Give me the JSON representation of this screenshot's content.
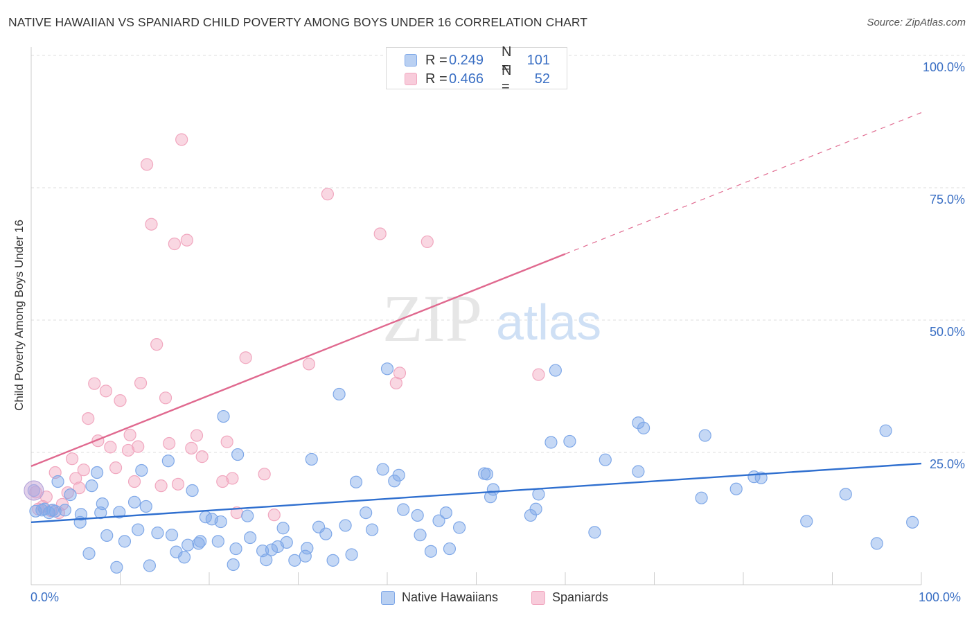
{
  "header": {
    "title": "NATIVE HAWAIIAN VS SPANIARD CHILD POVERTY AMONG BOYS UNDER 16 CORRELATION CHART",
    "source": "Source: ZipAtlas.com"
  },
  "watermark": {
    "zip": "ZIP",
    "atlas": "atlas"
  },
  "legend_top": {
    "rows": [
      {
        "r_label": "R =",
        "r_value": "0.249",
        "n_label": "N =",
        "n_value": "101",
        "color": "#7fa8e8"
      },
      {
        "r_label": "R =",
        "r_value": "0.466",
        "n_label": "N =",
        "n_value": "52",
        "color": "#f1a7bf"
      }
    ]
  },
  "legend_bottom": [
    {
      "label": "Native Hawaiians",
      "color": "#7fa8e8"
    },
    {
      "label": "Spaniards",
      "color": "#f1a7bf"
    }
  ],
  "colors": {
    "blue": "#7fa8e8",
    "blue_line": "#2f6fcf",
    "pink": "#f1a7bf",
    "pink_line": "#e0698f",
    "tick_text": "#3a6fc4",
    "grid": "#dddddd"
  },
  "chart_data": {
    "type": "scatter",
    "title": "NATIVE HAWAIIAN VS SPANIARD CHILD POVERTY AMONG BOYS UNDER 16 CORRELATION CHART",
    "xlabel": "",
    "ylabel": "Child Poverty Among Boys Under 16",
    "xlim": [
      0,
      100
    ],
    "ylim": [
      0,
      100
    ],
    "x_tick_labels": [
      "0.0%",
      "100.0%"
    ],
    "y_tick_labels": [
      "25.0%",
      "50.0%",
      "75.0%",
      "100.0%"
    ],
    "y_ticks": [
      25,
      50,
      75,
      100
    ],
    "grid": true,
    "legend_position": "top-center",
    "series": [
      {
        "name": "Native Hawaiians",
        "color": "#7fa8e8",
        "points": [
          [
            0.3,
            17.8
          ],
          [
            0.5,
            13.9
          ],
          [
            1.2,
            14.1
          ],
          [
            1.5,
            14.3
          ],
          [
            2.0,
            13.6
          ],
          [
            2.4,
            14.1
          ],
          [
            2.7,
            13.9
          ],
          [
            3.0,
            19.5
          ],
          [
            3.8,
            14.1
          ],
          [
            4.4,
            17.0
          ],
          [
            5.5,
            11.8
          ],
          [
            5.6,
            13.3
          ],
          [
            6.5,
            5.9
          ],
          [
            6.8,
            18.7
          ],
          [
            7.4,
            21.2
          ],
          [
            7.8,
            13.6
          ],
          [
            8.0,
            15.3
          ],
          [
            8.5,
            9.3
          ],
          [
            9.6,
            3.3
          ],
          [
            9.9,
            13.7
          ],
          [
            10.5,
            8.2
          ],
          [
            11.6,
            15.6
          ],
          [
            12.0,
            10.4
          ],
          [
            12.4,
            21.6
          ],
          [
            12.9,
            14.8
          ],
          [
            13.3,
            3.6
          ],
          [
            14.2,
            9.8
          ],
          [
            15.4,
            23.4
          ],
          [
            15.8,
            9.4
          ],
          [
            16.3,
            6.2
          ],
          [
            17.2,
            5.2
          ],
          [
            17.6,
            7.5
          ],
          [
            18.1,
            17.8
          ],
          [
            18.8,
            7.8
          ],
          [
            19.0,
            8.2
          ],
          [
            19.6,
            12.8
          ],
          [
            20.3,
            12.4
          ],
          [
            21.0,
            8.2
          ],
          [
            21.3,
            11.9
          ],
          [
            21.6,
            31.8
          ],
          [
            22.7,
            3.8
          ],
          [
            23.0,
            6.8
          ],
          [
            23.2,
            24.6
          ],
          [
            24.3,
            13.0
          ],
          [
            24.6,
            8.9
          ],
          [
            26.0,
            6.4
          ],
          [
            26.4,
            4.7
          ],
          [
            27.0,
            6.6
          ],
          [
            27.7,
            7.2
          ],
          [
            28.3,
            10.7
          ],
          [
            28.7,
            8.0
          ],
          [
            29.6,
            4.6
          ],
          [
            30.8,
            5.4
          ],
          [
            31.0,
            6.9
          ],
          [
            31.5,
            23.7
          ],
          [
            32.3,
            10.9
          ],
          [
            33.1,
            9.6
          ],
          [
            33.9,
            4.6
          ],
          [
            34.6,
            36.0
          ],
          [
            35.3,
            11.2
          ],
          [
            36.0,
            5.7
          ],
          [
            36.5,
            19.4
          ],
          [
            37.6,
            13.6
          ],
          [
            38.3,
            10.4
          ],
          [
            39.5,
            21.8
          ],
          [
            40.0,
            40.8
          ],
          [
            40.8,
            19.6
          ],
          [
            41.3,
            20.7
          ],
          [
            41.8,
            14.2
          ],
          [
            43.4,
            13.1
          ],
          [
            43.7,
            9.4
          ],
          [
            44.9,
            6.3
          ],
          [
            45.8,
            12.1
          ],
          [
            46.6,
            13.6
          ],
          [
            47.0,
            6.8
          ],
          [
            48.1,
            10.8
          ],
          [
            50.9,
            21.0
          ],
          [
            51.2,
            20.9
          ],
          [
            51.9,
            18.0
          ],
          [
            51.6,
            16.6
          ],
          [
            56.1,
            13.1
          ],
          [
            56.7,
            14.3
          ],
          [
            57.0,
            17.1
          ],
          [
            58.4,
            26.9
          ],
          [
            58.9,
            40.5
          ],
          [
            60.5,
            27.1
          ],
          [
            63.3,
            9.9
          ],
          [
            64.5,
            23.6
          ],
          [
            68.2,
            30.6
          ],
          [
            68.2,
            21.4
          ],
          [
            68.8,
            29.6
          ],
          [
            75.3,
            16.4
          ],
          [
            75.7,
            28.2
          ],
          [
            79.2,
            18.1
          ],
          [
            81.2,
            20.4
          ],
          [
            82.0,
            20.2
          ],
          [
            87.1,
            12.0
          ],
          [
            91.5,
            17.1
          ],
          [
            95.0,
            7.8
          ],
          [
            96.0,
            29.1
          ],
          [
            99.0,
            11.8
          ]
        ]
      },
      {
        "name": "Spaniards",
        "color": "#f1a7bf",
        "points": [
          [
            0.8,
            14.3
          ],
          [
            1.3,
            14.8
          ],
          [
            2.7,
            21.2
          ],
          [
            3.1,
            13.6
          ],
          [
            3.5,
            15.2
          ],
          [
            4.1,
            17.4
          ],
          [
            4.6,
            23.8
          ],
          [
            5.0,
            20.1
          ],
          [
            5.4,
            18.3
          ],
          [
            5.9,
            21.7
          ],
          [
            6.4,
            31.4
          ],
          [
            7.1,
            38.0
          ],
          [
            7.5,
            27.2
          ],
          [
            8.4,
            36.6
          ],
          [
            8.9,
            26.0
          ],
          [
            9.5,
            22.1
          ],
          [
            10.0,
            34.8
          ],
          [
            10.9,
            25.4
          ],
          [
            11.1,
            28.3
          ],
          [
            11.6,
            19.5
          ],
          [
            12.0,
            26.1
          ],
          [
            12.3,
            38.1
          ],
          [
            13.0,
            79.4
          ],
          [
            13.5,
            68.1
          ],
          [
            14.1,
            45.4
          ],
          [
            14.6,
            18.7
          ],
          [
            15.1,
            35.3
          ],
          [
            15.5,
            26.7
          ],
          [
            16.1,
            64.4
          ],
          [
            16.5,
            19.0
          ],
          [
            16.9,
            84.1
          ],
          [
            17.5,
            65.1
          ],
          [
            18.0,
            25.8
          ],
          [
            18.6,
            28.2
          ],
          [
            19.2,
            24.2
          ],
          [
            21.5,
            19.5
          ],
          [
            22.0,
            27.0
          ],
          [
            22.6,
            20.1
          ],
          [
            23.1,
            13.6
          ],
          [
            24.1,
            42.9
          ],
          [
            26.2,
            20.9
          ],
          [
            27.3,
            13.2
          ],
          [
            31.2,
            41.7
          ],
          [
            33.3,
            73.8
          ],
          [
            39.2,
            66.3
          ],
          [
            41.4,
            40.0
          ],
          [
            41.0,
            38.1
          ],
          [
            44.5,
            64.8
          ],
          [
            57.0,
            39.7
          ],
          [
            0.5,
            17.5
          ],
          [
            1.7,
            16.6
          ],
          [
            2.2,
            14.0
          ]
        ]
      }
    ],
    "trend_lines": [
      {
        "series": "Native Hawaiians",
        "x": [
          0,
          100
        ],
        "y": [
          11.8,
          22.9
        ],
        "style": "solid"
      },
      {
        "series": "Spaniards",
        "x": [
          0,
          60
        ],
        "y": [
          22.4,
          62.5
        ],
        "style": "solid"
      },
      {
        "series": "Spaniards",
        "x": [
          60,
          100
        ],
        "y": [
          62.5,
          89.2
        ],
        "style": "dashed"
      }
    ]
  }
}
